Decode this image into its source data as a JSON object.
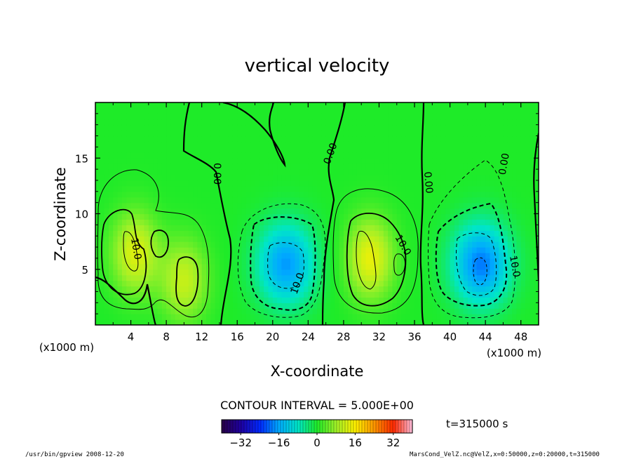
{
  "chart_data": {
    "type": "heatmap",
    "title": "vertical velocity",
    "xlabel": "X-coordinate",
    "ylabel": "Z-coordinate",
    "x_unit_left": "(x1000 m)",
    "x_unit_right": "(x1000 m)",
    "xlim": [
      0,
      50
    ],
    "ylim": [
      0,
      20
    ],
    "x_ticks": [
      4,
      8,
      12,
      16,
      20,
      24,
      28,
      32,
      36,
      40,
      44,
      48
    ],
    "y_ticks": [
      5,
      10,
      15
    ],
    "contour_interval_label": "CONTOUR INTERVAL = 5.000E+00",
    "contour_labels": [
      {
        "text": "10.0",
        "x": 4.8,
        "y": 7.5
      },
      {
        "text": "0.00",
        "x": 13.6,
        "y": 13.5
      },
      {
        "text": "10.0",
        "x": 23.0,
        "y": 3.3
      },
      {
        "text": "0.00",
        "x": 27.5,
        "y": 15.2
      },
      {
        "text": "10.0",
        "x": 34.0,
        "y": 7.4
      },
      {
        "text": "0.00",
        "x": 37.2,
        "y": 12.8
      },
      {
        "text": "10.0",
        "x": 46.6,
        "y": 5.3
      },
      {
        "text": "0.00",
        "x": 49.5,
        "y": 14.2
      }
    ],
    "colorbar": {
      "min": -40,
      "max": 40,
      "tick_values": [
        -32,
        -16,
        0,
        16,
        32
      ],
      "tick_labels": [
        "−32",
        "−16",
        "0",
        "16",
        "32"
      ]
    },
    "time_label": "t=315000 s",
    "footer_left": "/usr/bin/gpview  2008-12-20",
    "footer_right": "MarsCond_VelZ.nc@VelZ,x=0:50000,z=0:20000,t=315000",
    "field_features": [
      {
        "kind": "updraft",
        "x_center": 4.5,
        "z_center": 6.5,
        "peak": 13
      },
      {
        "kind": "updraft",
        "x_center": 10.0,
        "z_center": 4.0,
        "peak": 11
      },
      {
        "kind": "downdraft",
        "x_center": 21.5,
        "z_center": 5.5,
        "peak": -17
      },
      {
        "kind": "updraft",
        "x_center": 31.0,
        "z_center": 6.0,
        "peak": 14
      },
      {
        "kind": "downdraft",
        "x_center": 43.5,
        "z_center": 5.5,
        "peak": -19
      }
    ]
  }
}
